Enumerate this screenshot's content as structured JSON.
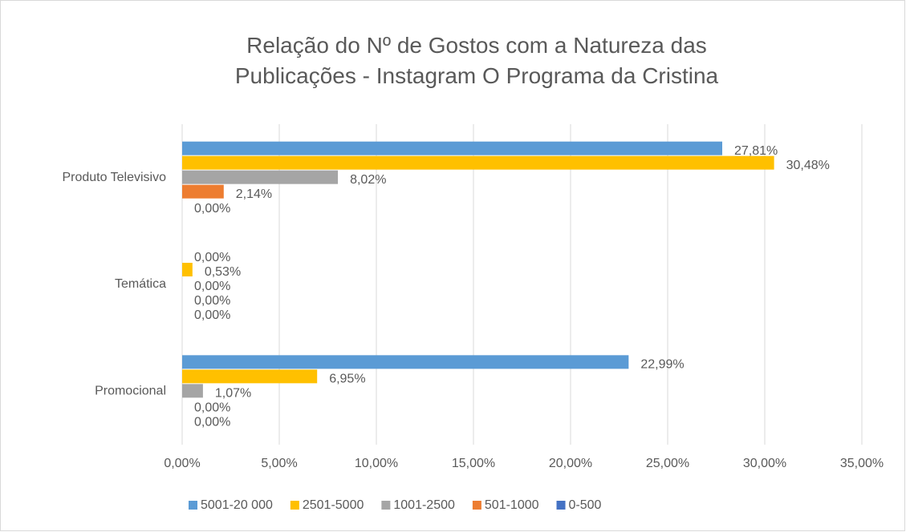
{
  "chart_data": {
    "type": "hbar",
    "title": "Relação do Nº de Gostos com a Natureza das Publicações - Instagram O Programa da Cristina",
    "categories": [
      "Produto Televisivo",
      "Temática",
      "Promocional"
    ],
    "series": [
      {
        "name": "5001-20 000",
        "color": "#5b9bd5",
        "values": [
          27.81,
          0,
          22.99
        ],
        "value_labels": [
          "27,81%",
          "0,00%",
          "22,99%"
        ]
      },
      {
        "name": "2501-5000",
        "color": "#ffc000",
        "values": [
          30.48,
          0.53,
          6.95
        ],
        "value_labels": [
          "30,48%",
          "0,53%",
          "6,95%"
        ]
      },
      {
        "name": "1001-2500",
        "color": "#a5a5a5",
        "values": [
          8.02,
          0,
          1.07
        ],
        "value_labels": [
          "8,02%",
          "0,00%",
          "1,07%"
        ]
      },
      {
        "name": "501-1000",
        "color": "#ed7d31",
        "values": [
          2.14,
          0,
          0
        ],
        "value_labels": [
          "2,14%",
          "0,00%",
          "0,00%"
        ]
      },
      {
        "name": "0-500",
        "color": "#4472c4",
        "values": [
          0,
          0,
          0
        ],
        "value_labels": [
          "0,00%",
          "0,00%",
          "0,00%"
        ]
      }
    ],
    "xlim": [
      0,
      35
    ],
    "xticks": [
      {
        "value": 0,
        "label": "0,00%"
      },
      {
        "value": 5,
        "label": "5,00%"
      },
      {
        "value": 10,
        "label": "10,00%"
      },
      {
        "value": 15,
        "label": "15,00%"
      },
      {
        "value": 20,
        "label": "20,00%"
      },
      {
        "value": 25,
        "label": "25,00%"
      },
      {
        "value": 30,
        "label": "30,00%"
      },
      {
        "value": 35,
        "label": "35,00%"
      }
    ],
    "grid": true,
    "legend": "bottom"
  }
}
